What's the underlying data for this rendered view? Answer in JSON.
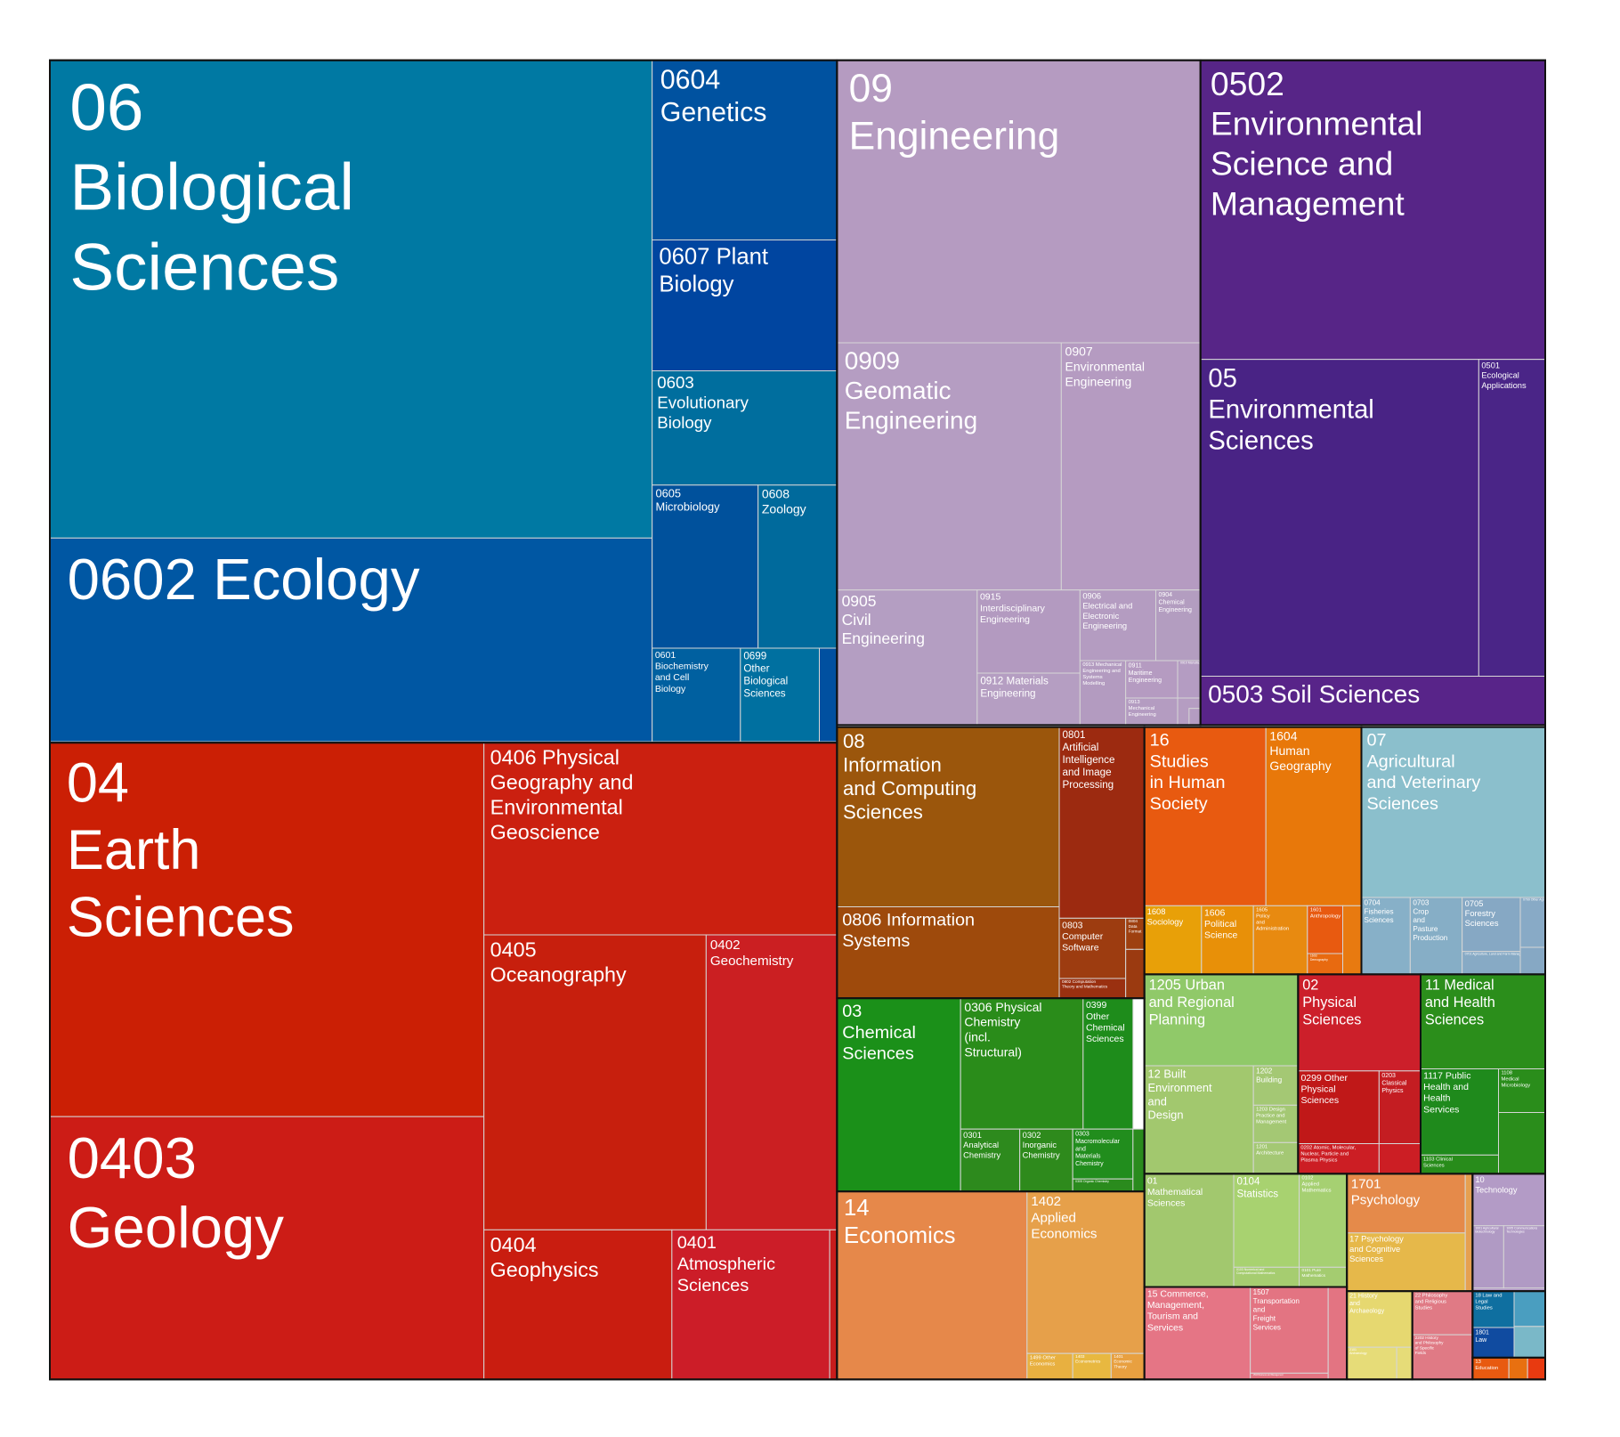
{
  "chart_data": {
    "type": "treemap",
    "title": "",
    "cells": [
      {
        "label": "06 Biological Sciences",
        "color": "#0079a3"
      },
      {
        "label": "0602 Ecology",
        "color": "#0057a3"
      },
      {
        "label": "0604 Genetics",
        "color": "#0052a0"
      },
      {
        "label": "0607 Plant Biology",
        "color": "#0045a0"
      },
      {
        "label": "0603 Evolutionary Biology",
        "color": "#006e9e"
      },
      {
        "label": "0605 Microbiology",
        "color": "#00519c"
      },
      {
        "label": "0608 Zoology",
        "color": "#006a9c"
      },
      {
        "label": "0601 Biochemistry and Cell Biology",
        "color": "#0060a0"
      },
      {
        "label": "0699 Other Biological Sciences",
        "color": "#0070a0"
      },
      {
        "label": "",
        "color": "#0050a0"
      },
      {
        "label": "04 Earth Sciences",
        "color": "#cb1f05"
      },
      {
        "label": "0403 Geology",
        "color": "#cc1c16"
      },
      {
        "label": "0406 Physical Geography and Environmental Geoscience",
        "color": "#cb2010"
      },
      {
        "label": "0405 Oceanography",
        "color": "#c71f0d"
      },
      {
        "label": "0402 Geochemistry",
        "color": "#cb1f22"
      },
      {
        "label": "0404 Geophysics",
        "color": "#c91d10"
      },
      {
        "label": "0401 Atmospheric Sciences",
        "color": "#cc1d28"
      },
      {
        "label": "",
        "color": "#c81c1c"
      },
      {
        "label": "09 Engineering",
        "color": "#b59bc1"
      },
      {
        "label": "0909 Geomatic Engineering",
        "color": "#b59dc2"
      },
      {
        "label": "0907 Environmental Engineering",
        "color": "#b59bc1"
      },
      {
        "label": "0905 Civil Engineering",
        "color": "#b49ec2"
      },
      {
        "label": "0915 Interdisciplinary Engineering",
        "color": "#b39ac0"
      },
      {
        "label": "0906 Electrical and Electronic Engineering",
        "color": "#b49cc1"
      },
      {
        "label": "0904 Chemical Engineering",
        "color": "#b39dc0"
      },
      {
        "label": "0912 Materials Engineering",
        "color": "#b59ec2"
      },
      {
        "label": "0913 Mechanical Engineering and Systems Modelling",
        "color": "#b39bc0"
      },
      {
        "label": "0911 Maritime Engineering",
        "color": "#b59bc1"
      },
      {
        "label": "0910 Manufacturing Engineering",
        "color": "#b49cc2"
      },
      {
        "label": "0913 Mechanical Engineering",
        "color": "#b49cc1"
      },
      {
        "label": "",
        "color": "#b59dc2"
      },
      {
        "label": "",
        "color": "#b49cc1"
      },
      {
        "label": "0502 Environmental Science and Management",
        "color": "#572587"
      },
      {
        "label": "05 Environmental Sciences",
        "color": "#492385"
      },
      {
        "label": "0501 Ecological Applications",
        "color": "#4a2587"
      },
      {
        "label": "0503 Soil Sciences",
        "color": "#582489"
      },
      {
        "label": "08 Information and Computing Sciences",
        "color": "#9b560c"
      },
      {
        "label": "0806 Information Systems",
        "color": "#9e4a0c"
      },
      {
        "label": "0801 Artificial Intelligence and Image Processing",
        "color": "#9c2a10"
      },
      {
        "label": "0803 Computer Software",
        "color": "#9d3c10"
      },
      {
        "label": "0802 Computation Theory and Mathematics",
        "color": "#9a3010"
      },
      {
        "label": "0804 Data Format",
        "color": "#9e4010"
      },
      {
        "label": "",
        "color": "#9b3a10"
      },
      {
        "label": "16 Studies in Human Society",
        "color": "#e85a10"
      },
      {
        "label": "1604 Human Geography",
        "color": "#e8780a"
      },
      {
        "label": "1608 Sociology",
        "color": "#e8a008"
      },
      {
        "label": "1606 Political Science",
        "color": "#e89008"
      },
      {
        "label": "1605 Policy and Administration",
        "color": "#e88a10"
      },
      {
        "label": "1601 Anthropology",
        "color": "#e85a10"
      },
      {
        "label": "1603 Demography",
        "color": "#e86a10"
      },
      {
        "label": "",
        "color": "#e87a10"
      },
      {
        "label": "07 Agricultural and Veterinary Sciences",
        "color": "#8bbfcc"
      },
      {
        "label": "0704 Fisheries Sciences",
        "color": "#87b0c8"
      },
      {
        "label": "0703 Crop and Pasture Production",
        "color": "#86aec6"
      },
      {
        "label": "0705 Forestry Sciences",
        "color": "#86a8c4"
      },
      {
        "label": "0799 Other Agricultural and Veterinary Sciences",
        "color": "#88aac6"
      },
      {
        "label": "0701 Agriculture, Land and Farm Management",
        "color": "#87aac5"
      },
      {
        "label": "",
        "color": "#86a8c4"
      },
      {
        "label": "03 Chemical Sciences",
        "color": "#1b9019"
      },
      {
        "label": "0306 Physical Chemistry (incl. Structural)",
        "color": "#2a8c1a"
      },
      {
        "label": "0399 Other Chemical Sciences",
        "color": "#1e8c1b"
      },
      {
        "label": "0301 Analytical Chemistry",
        "color": "#2d8a1d"
      },
      {
        "label": "0302 Inorganic Chemistry",
        "color": "#2e8a1c"
      },
      {
        "label": "0303 Macromolecular and Materials Chemistry",
        "color": "#218d1d"
      },
      {
        "label": "0305 Organic Chemistry",
        "color": "#2a8b1d"
      },
      {
        "label": "",
        "color": "#2a8b1d"
      },
      {
        "label": "1205 Urban and Regional Planning",
        "color": "#90c969"
      },
      {
        "label": "12 Built Environment and Design",
        "color": "#a2c86e"
      },
      {
        "label": "1202 Building",
        "color": "#a4c874"
      },
      {
        "label": "1203 Design Practice and Management",
        "color": "#a4c874"
      },
      {
        "label": "1201 Architecture",
        "color": "#a4c874"
      },
      {
        "label": "02 Physical Sciences",
        "color": "#cc1f2a"
      },
      {
        "label": "0299 Other Physical Sciences",
        "color": "#c01818"
      },
      {
        "label": "0203 Classical Physics",
        "color": "#c41d22"
      },
      {
        "label": "0202 Atomic, Molecular, Nuclear, Particle and Plasma Physics",
        "color": "#cc1e24"
      },
      {
        "label": "",
        "color": "#cc1e24"
      },
      {
        "label": "11 Medical and Health Sciences",
        "color": "#2b8e1b"
      },
      {
        "label": "1117 Public Health and Health Services",
        "color": "#1f8a1c"
      },
      {
        "label": "1108 Medical Microbiology",
        "color": "#2a8d1b"
      },
      {
        "label": "1103 Clinical Sciences",
        "color": "#288c1b"
      },
      {
        "label": "",
        "color": "#2a8d1b"
      },
      {
        "label": "14 Economics",
        "color": "#e6884a"
      },
      {
        "label": "1402 Applied Economics",
        "color": "#e6a04a"
      },
      {
        "label": "1499 Other Economics",
        "color": "#e8b040"
      },
      {
        "label": "1403 Econometrics",
        "color": "#e8b840"
      },
      {
        "label": "1401 Economic Theory",
        "color": "#e8a040"
      },
      {
        "label": "01 Mathematical Sciences",
        "color": "#a2c86e"
      },
      {
        "label": "0104 Statistics",
        "color": "#a8d270"
      },
      {
        "label": "0102 Applied Mathematics",
        "color": "#a6d072"
      },
      {
        "label": "0103 Numerical and Computational Mathematics",
        "color": "#a6cd70"
      },
      {
        "label": "0101 Pure Mathematics",
        "color": "#a4cc70"
      },
      {
        "label": "1701 Psychology",
        "color": "#e58a4a"
      },
      {
        "label": "17 Psychology and Cognitive Sciences",
        "color": "#e6b84a"
      },
      {
        "label": "",
        "color": "#e6a050"
      },
      {
        "label": "10 Technology",
        "color": "#b39bc6"
      },
      {
        "label": "1001 Agricultural Biotechnology",
        "color": "#b09ac4"
      },
      {
        "label": "1005 Communications Technologies",
        "color": "#b09ac4"
      },
      {
        "label": "15 Commerce, Management, Tourism and Services",
        "color": "#e57585"
      },
      {
        "label": "1507 Transportation and Freight Services",
        "color": "#e37482"
      },
      {
        "label": "1503 Business and Management",
        "color": "#e37482"
      },
      {
        "label": "",
        "color": "#e37482"
      },
      {
        "label": "21 History and Archaeology",
        "color": "#e6d870"
      },
      {
        "label": "2101 Archaeology",
        "color": "#e6dc78"
      },
      {
        "label": "",
        "color": "#e6dc78"
      },
      {
        "label": "22 Philosophy and Religious Studies",
        "color": "#e07a85"
      },
      {
        "label": "2202 History and Philosophy of Specific Fields",
        "color": "#e07a85"
      },
      {
        "label": "18 Law and Legal Studies",
        "color": "#0f6fa0"
      },
      {
        "label": "1801 Law",
        "color": "#104ba0"
      },
      {
        "label": "",
        "color": "#4a9ec0"
      },
      {
        "label": "",
        "color": "#7ab8c8"
      },
      {
        "label": "13 Education",
        "color": "#e85a10"
      },
      {
        "label": "",
        "color": "#e87010"
      },
      {
        "label": "",
        "color": "#e83a10"
      }
    ]
  }
}
